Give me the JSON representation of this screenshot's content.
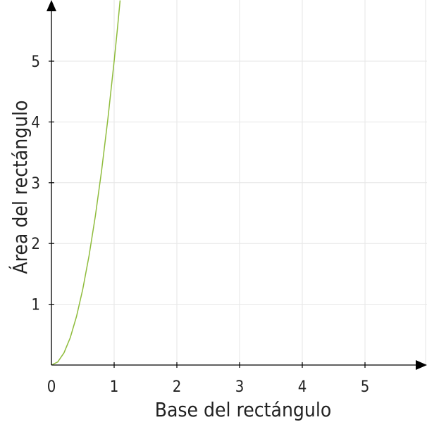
{
  "chart_data": {
    "type": "line",
    "title": "",
    "xlabel": "Base del rectángulo",
    "ylabel": "Área del rectángulo",
    "xlim": [
      0,
      5.9
    ],
    "ylim": [
      0,
      6
    ],
    "x_ticks": [
      "0",
      "1",
      "2",
      "3",
      "4",
      "5"
    ],
    "y_ticks": [
      "1",
      "2",
      "3",
      "4",
      "5"
    ],
    "grid": true,
    "series": [
      {
        "color": "#8fbc3c",
        "x": [
          0,
          0.1,
          0.2,
          0.3,
          0.4,
          0.5,
          0.6,
          0.7,
          0.8,
          0.9,
          1.0,
          1.05,
          1.095
        ],
        "y": [
          0,
          0.05,
          0.2,
          0.45,
          0.8,
          1.25,
          1.8,
          2.45,
          3.2,
          4.05,
          5.0,
          5.51,
          6.0
        ]
      }
    ]
  }
}
